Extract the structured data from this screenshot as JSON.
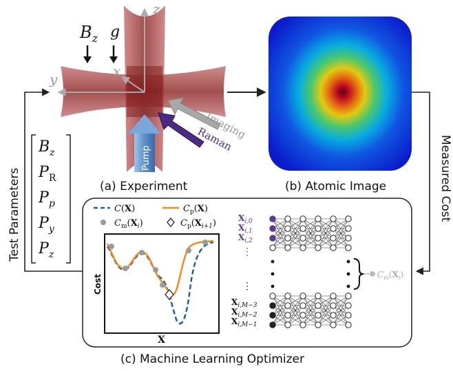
{
  "experiment": {
    "caption": "(a) Experiment",
    "bz_label": "B",
    "bz_sub": "z",
    "g_label": "g",
    "axis_x": "x",
    "axis_y": "y",
    "axis_z": "z",
    "pump_label": "Pump",
    "imaging_label": "Imaging",
    "raman_label": "Raman"
  },
  "atomic_image": {
    "caption": "(b) Atomic Image"
  },
  "optimizer": {
    "caption": "(c) Machine Learning Optimizer",
    "legend": {
      "c_true": "C(X)",
      "c_pred": "Cp(X)",
      "c_meas": "Cm(Xi)",
      "c_next": "Cp(Xi+1)"
    },
    "plot": {
      "ylabel": "Cost",
      "xlabel": "X"
    },
    "inputs_top": [
      "Xi,0",
      "Xi,1",
      "Xi,2"
    ],
    "inputs_bottom": [
      "Xi,M−3",
      "Xi,M−2",
      "Xi,M−1"
    ],
    "output_label": "Cm(Xi)"
  },
  "flow": {
    "test_parameters": "Test Parameters",
    "measured_cost": "Measured Cost",
    "params": [
      {
        "base": "P",
        "sub": "z"
      },
      {
        "base": "P",
        "sub": "y"
      },
      {
        "base": "P",
        "sub": "p"
      },
      {
        "base": "P",
        "sub": "R"
      },
      {
        "base": "B",
        "sub": "z"
      }
    ]
  },
  "colors": {
    "beam": "#a33b3b",
    "pump": "#6f9fd2",
    "raman": "#4a2a82",
    "imaging": "#9a9a9a",
    "true_curve": "#1f5f9a",
    "pred_curve": "#f28a1e",
    "node_purple": "#5b3a93"
  },
  "chart_data": {
    "type": "line",
    "title": "",
    "xlabel": "X",
    "ylabel": "Cost",
    "series": [
      {
        "name": "C(X)",
        "values": []
      },
      {
        "name": "Cp(X)",
        "values": []
      }
    ],
    "markers": [
      "Cm(Xi)",
      "Cp(Xi+1)"
    ]
  }
}
